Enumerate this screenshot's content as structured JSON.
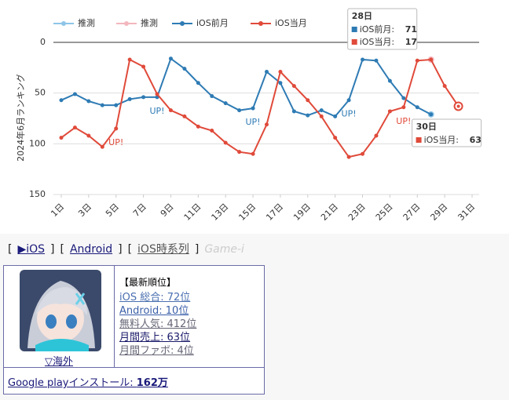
{
  "chart_data": {
    "type": "line",
    "y_label": "2024年6月ランキング",
    "x": [
      1,
      2,
      3,
      4,
      5,
      6,
      7,
      8,
      9,
      10,
      11,
      12,
      13,
      14,
      15,
      16,
      17,
      18,
      19,
      20,
      21,
      22,
      23,
      24,
      25,
      26,
      27,
      28,
      29,
      30,
      31
    ],
    "xlim": [
      1,
      31
    ],
    "xticks": [
      {
        "value": 1,
        "label": "1日"
      },
      {
        "value": 3,
        "label": "3日"
      },
      {
        "value": 5,
        "label": "5日"
      },
      {
        "value": 7,
        "label": "7日"
      },
      {
        "value": 9,
        "label": "9日"
      },
      {
        "value": 11,
        "label": "11日"
      },
      {
        "value": 13,
        "label": "13日"
      },
      {
        "value": 15,
        "label": "15日"
      },
      {
        "value": 17,
        "label": "17日"
      },
      {
        "value": 19,
        "label": "19日"
      },
      {
        "value": 21,
        "label": "21日"
      },
      {
        "value": 23,
        "label": "23日"
      },
      {
        "value": 25,
        "label": "25日"
      },
      {
        "value": 27,
        "label": "27日"
      },
      {
        "value": 29,
        "label": "29日"
      },
      {
        "value": 31,
        "label": "31日"
      }
    ],
    "ylim": [
      0,
      150
    ],
    "y_inverted": true,
    "yticks": [
      0,
      50,
      100,
      150
    ],
    "grid": true,
    "series": [
      {
        "name": "推測",
        "color": "#8ec5e8",
        "dashed": true,
        "values": [
          null,
          null,
          null,
          null,
          null,
          null,
          null,
          null,
          null,
          null,
          null,
          null,
          null,
          null,
          null,
          null,
          null,
          null,
          null,
          null,
          null,
          null,
          null,
          null,
          null,
          null,
          null,
          71,
          null,
          null,
          null
        ]
      },
      {
        "name": "推測",
        "color": "#f4b6be",
        "dashed": true,
        "values": [
          null,
          null,
          null,
          null,
          null,
          null,
          null,
          null,
          null,
          null,
          null,
          null,
          null,
          null,
          null,
          null,
          null,
          null,
          null,
          null,
          null,
          null,
          null,
          null,
          null,
          null,
          null,
          17,
          null,
          null,
          null
        ]
      },
      {
        "name": "iOS前月",
        "color": "#2e7bb4",
        "values": [
          57,
          51,
          58,
          62,
          62,
          56,
          54,
          54,
          16,
          26,
          40,
          53,
          60,
          67,
          65,
          29,
          40,
          68,
          72,
          67,
          73,
          57,
          17,
          18,
          38,
          55,
          64,
          71,
          null,
          null,
          null
        ]
      },
      {
        "name": "iOS当月",
        "color": "#e04a3a",
        "values": [
          94,
          84,
          92,
          103,
          85,
          17,
          24,
          51,
          67,
          73,
          83,
          87,
          99,
          108,
          110,
          81,
          29,
          43,
          57,
          73,
          94,
          113,
          110,
          92,
          68,
          64,
          18,
          17,
          43,
          63,
          null
        ]
      }
    ],
    "annotations": [
      {
        "text": "UP!",
        "x": 5,
        "series": "iOS当月"
      },
      {
        "text": "UP!",
        "x": 8,
        "series": "iOS前月"
      },
      {
        "text": "UP!",
        "x": 15,
        "series": "iOS前月"
      },
      {
        "text": "UP!",
        "x": 22,
        "series": "iOS前月"
      },
      {
        "text": "UP!",
        "x": 26,
        "series": "iOS当月"
      }
    ],
    "tooltips": [
      {
        "title": "28日",
        "x": 28,
        "items": [
          {
            "label": "iOS前月:",
            "value": 71,
            "color": "#2e7bb4"
          },
          {
            "label": "iOS当月:",
            "value": 17,
            "color": "#e04a3a"
          }
        ]
      },
      {
        "title": "30日",
        "x": 30,
        "items": [
          {
            "label": "iOS当月:",
            "value": 63,
            "color": "#e04a3a"
          }
        ]
      }
    ]
  },
  "nav": [
    "[",
    "▶iOS",
    "]",
    "[",
    "Android",
    "]",
    "[",
    "iOS時系列",
    "]",
    "Game-i"
  ],
  "card": {
    "region_link": "▽海外",
    "heading": "【最新順位】",
    "ranks": [
      "iOS 総合: 72位",
      "Android: 10位",
      "無料人気: 412位",
      "月間売上: 63位",
      "月間ファボ: 4位"
    ],
    "install_label": "Google playインストール: ",
    "install_value": "162万"
  }
}
